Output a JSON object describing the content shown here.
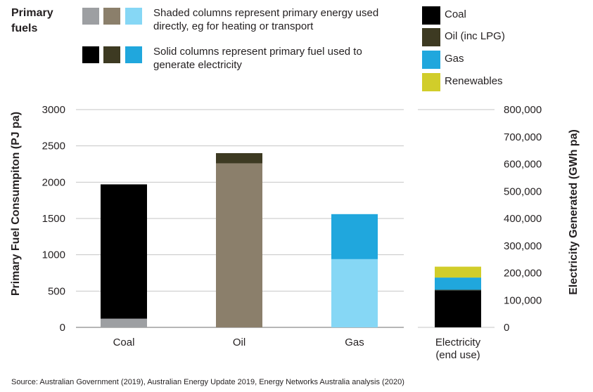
{
  "legend": {
    "title": "Primary fuels",
    "shaded_note": "Shaded columns represent primary energy used directly, eg for heating or transport",
    "solid_note": "Solid columns represent primary fuel used to generate electricity",
    "shaded_colors": [
      "#9d9fa2",
      "#8b7f6b",
      "#86d7f5"
    ],
    "solid_colors": [
      "#000000",
      "#3d3a22",
      "#20a7dd"
    ],
    "fuel_key": [
      {
        "label": "Coal",
        "color": "#000000"
      },
      {
        "label": "Oil (inc LPG)",
        "color": "#3d3a22"
      },
      {
        "label": "Gas",
        "color": "#20a7dd"
      },
      {
        "label": "Renewables",
        "color": "#d1cd2a"
      }
    ]
  },
  "source": "Source: Australian Government (2019), Australian Energy Update 2019, Energy Networks Australia analysis (2020)",
  "chart_data": {
    "type": "bar",
    "stacked": true,
    "ylabel": "Primary Fuel Consumpiton (PJ pa)",
    "y2label": "Electricity Generated (GWh pa)",
    "ylim": [
      0,
      3000
    ],
    "y2lim": [
      0,
      800000
    ],
    "yticks": [
      "3000",
      "2500",
      "2000",
      "1500",
      "1000",
      "500",
      "0"
    ],
    "y2ticks": [
      "800,000",
      "700,000",
      "600,000",
      "500,000",
      "400,000",
      "300,000",
      "200,000",
      "100,000",
      "0"
    ],
    "grid": true,
    "categories": [
      "Coal",
      "Oil",
      "Gas"
    ],
    "secondary_category": [
      "Electricity",
      "(end use)"
    ],
    "primary_bars": [
      {
        "category": "Coal",
        "direct_use": 120,
        "electricity_fuel": 1850,
        "direct_color": "#9d9fa2",
        "fuel_color": "#000000"
      },
      {
        "category": "Oil",
        "direct_use": 2260,
        "electricity_fuel": 140,
        "direct_color": "#8b7f6b",
        "fuel_color": "#3d3a22"
      },
      {
        "category": "Gas",
        "direct_use": 940,
        "electricity_fuel": 620,
        "direct_color": "#86d7f5",
        "fuel_color": "#20a7dd"
      }
    ],
    "electricity_bar": [
      {
        "fuel": "Coal",
        "value": 136000,
        "color": "#000000"
      },
      {
        "fuel": "Oil (inc LPG)",
        "value": 2000,
        "color": "#3d3a22"
      },
      {
        "fuel": "Gas",
        "value": 45000,
        "color": "#20a7dd"
      },
      {
        "fuel": "Renewables",
        "value": 40000,
        "color": "#d1cd2a"
      }
    ]
  }
}
